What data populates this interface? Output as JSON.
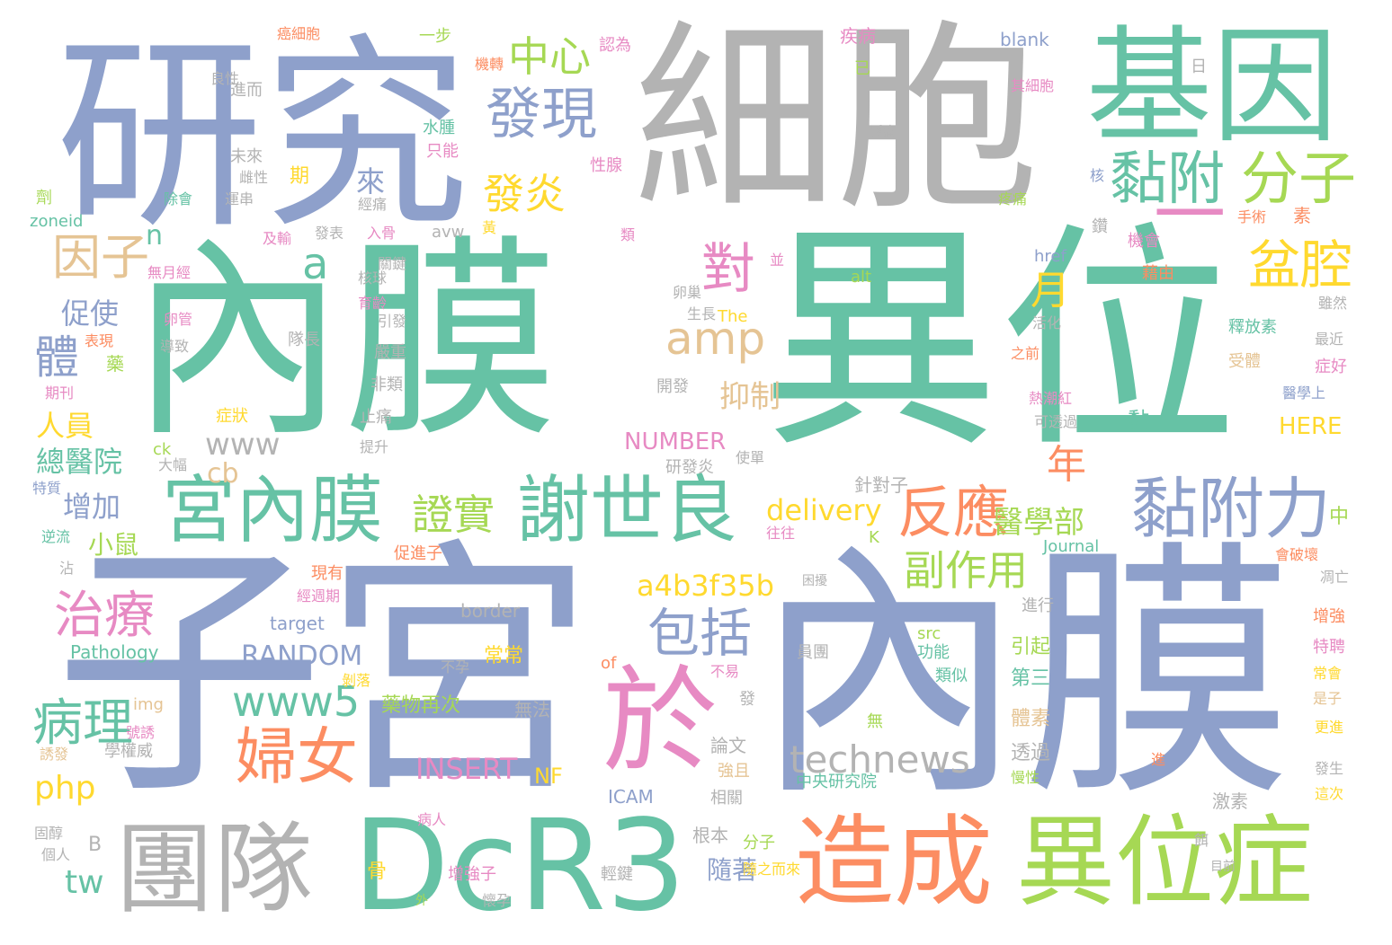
{
  "palette": {
    "blue": "#8ea0cb",
    "teal": "#66c2a5",
    "gray": "#b3b3b3",
    "lime": "#a6d854",
    "orange": "#fc8d62",
    "pink": "#e78ac3",
    "yellow": "#ffd92f",
    "tan": "#e5c494",
    "background": "#ffffff"
  },
  "words": {
    "neimo1": "內膜",
    "yiwei1": "異位",
    "zigong": "子宮",
    "neimo2": "內膜",
    "xibao": "細胞",
    "yanjiu": "研究",
    "jiyin": "基因",
    "dcr3": "DcR3",
    "tuandui": "團隊",
    "zaocheng": "造成",
    "yiweizheng": "異位症",
    "gongneimo": "宮內膜",
    "xieshiliang": "謝世良",
    "yu": "於",
    "niantuli": "黏附力",
    "nianfu": "黏附",
    "fenzi": "分子",
    "faxian": "發現",
    "zhongxin": "中心",
    "fayan": "發炎",
    "penqiang": "盆腔",
    "yinzi": "因子",
    "amp": "amp",
    "dui": "對",
    "fanying": "反應",
    "fuzuoyong": "副作用",
    "zhiliao": "治療",
    "baokuo": "包括",
    "funv": "婦女",
    "bingli": "病理",
    "www5": "www5",
    "technews": "technews",
    "a4b": "a4b3f35b",
    "delivery": "delivery",
    "zhengshi": "證實",
    "yizhi": "抑制",
    "yue": "月",
    "nian": "年",
    "ti": "體",
    "cujin": "促使",
    "renyuan": "人員",
    "zongyiyuan": "總醫院",
    "zengjia": "增加",
    "xiaoshu": "小鼠",
    "php": "php",
    "tw": "tw",
    "insert": "INSERT",
    "nf": "NF",
    "random": "RANDOM",
    "www": "www",
    "cb": "cb",
    "a": "a",
    "n": "n",
    "yixuebu": "醫學部",
    "suizhe": "隨著",
    "number": "NUMBER",
    "here": "HERE",
    "dash": "一",
    "blank": "blank",
    "href": "href",
    "alt": "alt",
    "the": "The",
    "journal": "Journal",
    "pathology": "Pathology",
    "target": "target",
    "border": "border",
    "src": "src",
    "img": "img",
    "icam": "ICAM",
    "of": "of",
    "k": "K",
    "b": "B",
    "ck": "ck",
    "zoneid": "zoneid",
    "avw": "avw",
    "zhongyang": "中央研究院",
    "changchang": "常常",
    "bujun": "不孕",
    "yaowuzaici": "藥物再次",
    "wufa": "無法",
    "yinqi": "引起",
    "disan": "第三",
    "tisu": "體素",
    "tougou": "透過",
    "lunwen": "論文",
    "qiangqie": "強且",
    "xiangguan": "相關",
    "genben": "根本",
    "fenzi2": "分子",
    "suizhierlai": "隨之而來",
    "qingjian": "輕鍵",
    "zengqiangzi": "增強子",
    "huaiyun": "懷孕",
    "bingren": "病人",
    "gu": "骨",
    "wai": "外",
    "zhenduizi": "針對子",
    "cujinzi": "促進子",
    "wangwang": "往往",
    "yanfayan": "研發炎",
    "shishou": "使單",
    "kunfu": "困擾",
    "yuantuan": "員團",
    "gongneng": "功能",
    "leisi": "類似",
    "jinxing": "進行",
    "fayu": "發",
    "wu": "無",
    "bushou": "不易",
    "zhongdu": "中",
    "shuifangfa": "釋放素",
    "zuijin": "最近",
    "shouti": "受體",
    "zhenghao": "症好",
    "yixueshang": "醫學上",
    "huihuaishu": "會破壞",
    "diaowang": "凋亡",
    "zengqiang": "增強",
    "tepin": "特聘",
    "changhui": "常會",
    "shizi": "是子",
    "gengjin": "更進",
    "fasheng": "發生",
    "zheci": "這次",
    "jisu": "激素",
    "mubian": "目前",
    "er": "餌",
    "jin": "進",
    "manxing": "慢性",
    "jiyou": "藉由",
    "suiran": "雖然",
    "zhiqian": "之前",
    "huohua": "活化",
    "keyi": "可透過",
    "reqiao": "熱潮紅",
    "shoushu": "手術",
    "su": "素",
    "jihui": "機會",
    "bing": "並",
    "luanchao": "卵巢",
    "shengzhang": "生長",
    "jibing": "疾病",
    "renwei": "認為",
    "yibu": "一步",
    "xianzhe": "癌細胞",
    "liangxing": "良性",
    "jinger": "進而",
    "shuizhong": "水腫",
    "zhineng": "只能",
    "xingxian": "性腺",
    "weilai": "未來",
    "cixing": "雌性",
    "qi": "期",
    "lai": "來",
    "jijing": "經痛",
    "yunchuan": "運串",
    "chuhui": "除會",
    "zhi": "劑",
    "fabiao": "發表",
    "rugu": "入骨",
    "guanjian": "關鍵",
    "heqiu": "核球",
    "yufang": "預防",
    "chulai": "出",
    "wuyuejing": "無月經",
    "luanguan": "卵管",
    "biaoxian": "表現",
    "daozhi": "導致",
    "yao": "藥",
    "qikan": "期刊",
    "feilei": "非類",
    "zhitong": "止痛",
    "zhengzhuang": "症狀",
    "tisheng": "提升",
    "dafu": "大幅",
    "tezhi": "特質",
    "duizhang": "隊長",
    "yanzhong": "嚴重",
    "kaifa": "開發",
    "yufa": "育齡",
    "yinfa": "引發",
    "jiqi": "及輸",
    "niyue": "逆流",
    "zhan": "沾",
    "xianyou": "現有",
    "jingzhouqi": "經週期",
    "bo": "剝落",
    "haoyou": "號誘",
    "xuequanwei": "學權威",
    "youfa": "誘發",
    "guchun": "固醇",
    "geren": "個人",
    "tengtong": "疼痛",
    "qixibao": "其細胞",
    "ri": "日",
    "rixing": "腫瘤",
    "he": "核",
    "zuan": "鑽",
    "yi": "已",
    "jiaozhuan": "機轉",
    "lei": "類",
    "huang": "黃",
    "nian2": "黏",
    "jingtong2": "經痛"
  }
}
